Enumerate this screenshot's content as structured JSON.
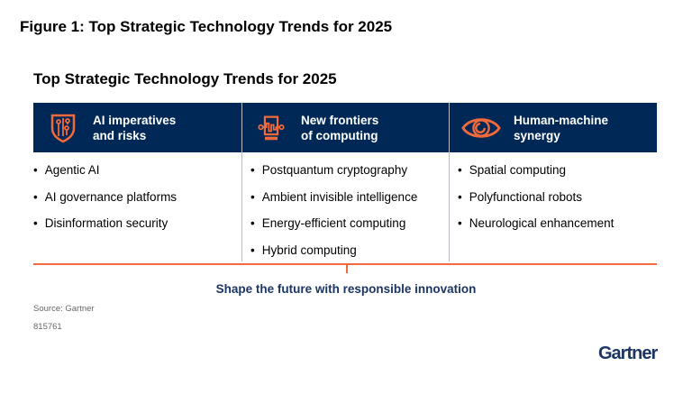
{
  "figure_title": "Figure 1: Top Strategic Technology Trends for 2025",
  "subtitle": "Top Strategic Technology Trends for 2025",
  "colors": {
    "header_bg": "#002856",
    "accent": "#f26a3b",
    "tagline": "#1b3564"
  },
  "columns": [
    {
      "title": "AI imperatives\nand risks",
      "icon": "shield-circuit-icon",
      "items": [
        "Agentic AI",
        "AI governance platforms",
        "Disinformation security"
      ]
    },
    {
      "title": "New frontiers\nof computing",
      "icon": "chip-waveform-icon",
      "items": [
        "Postquantum cryptography",
        "Ambient invisible intelligence",
        "Energy-efficient computing",
        "Hybrid computing"
      ]
    },
    {
      "title": "Human-machine\nsynergy",
      "icon": "eye-icon",
      "items": [
        "Spatial computing",
        "Polyfunctional robots",
        "Neurological enhancement"
      ]
    }
  ],
  "tagline": "Shape the future with responsible innovation",
  "source": "Source: Gartner",
  "id": "815761",
  "logo": "Gartner"
}
